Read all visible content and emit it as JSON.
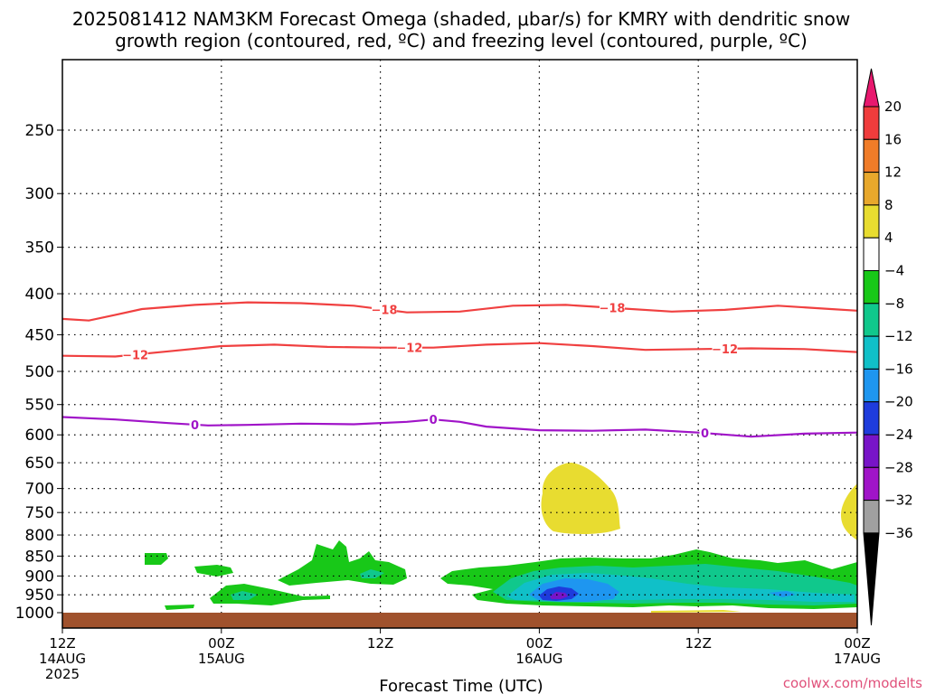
{
  "chart_data": {
    "type": "heatmap",
    "title_line1": "2025081412 NAM3KM Forecast Omega (shaded, μbar/s) for KMRY with dendritic snow",
    "title_line2": "growth region (contoured, red, ºC) and freezing level (contoured, purple, ºC)",
    "xlabel": "Forecast Time (UTC)",
    "credit": "coolwx.com/modelts",
    "x_range_hours": [
      0,
      60
    ],
    "x_ticks": [
      {
        "hour": 0,
        "lines": [
          "12Z",
          "14AUG",
          "2025"
        ]
      },
      {
        "hour": 12,
        "lines": [
          "00Z",
          "15AUG"
        ]
      },
      {
        "hour": 24,
        "lines": [
          "12Z"
        ]
      },
      {
        "hour": 36,
        "lines": [
          "00Z",
          "16AUG"
        ]
      },
      {
        "hour": 48,
        "lines": [
          "12Z"
        ]
      },
      {
        "hour": 60,
        "lines": [
          "00Z",
          "17AUG"
        ]
      }
    ],
    "y_ticks_hpa": [
      250,
      300,
      350,
      400,
      450,
      500,
      550,
      600,
      650,
      700,
      750,
      800,
      850,
      900,
      950,
      1000
    ],
    "colorbar_labels": [
      "20",
      "16",
      "12",
      "8",
      "4",
      "−4",
      "−8",
      "−12",
      "−16",
      "−20",
      "−24",
      "−28",
      "−32",
      "−36"
    ],
    "colorbar_colors": [
      "#e8186e",
      "#f03c3c",
      "#f07c28",
      "#e8a82c",
      "#e8dc30",
      "#ffffff",
      "#18c818",
      "#10c88c",
      "#10c0c8",
      "#1e96f0",
      "#1e3cdc",
      "#7814c8",
      "#a014c8",
      "#a0a0a0",
      "#000000"
    ],
    "contours": [
      {
        "label": "−18",
        "color": "#f04040",
        "points": [
          [
            0,
            430
          ],
          [
            2,
            432
          ],
          [
            4,
            425
          ],
          [
            6,
            418
          ],
          [
            10,
            413
          ],
          [
            14,
            410
          ],
          [
            18,
            411
          ],
          [
            22,
            414
          ],
          [
            26,
            422
          ],
          [
            30,
            421
          ],
          [
            34,
            414
          ],
          [
            38,
            413
          ],
          [
            42,
            417
          ],
          [
            46,
            421
          ],
          [
            50,
            419
          ],
          [
            54,
            414
          ],
          [
            58,
            418
          ],
          [
            60,
            420
          ]
        ],
        "label_hours": [
          24.3,
          41.5
        ]
      },
      {
        "label": "−12",
        "color": "#f04040",
        "points": [
          [
            0,
            478
          ],
          [
            4,
            479
          ],
          [
            8,
            472
          ],
          [
            12,
            465
          ],
          [
            16,
            463
          ],
          [
            20,
            466
          ],
          [
            24,
            467
          ],
          [
            28,
            467
          ],
          [
            32,
            463
          ],
          [
            36,
            461
          ],
          [
            40,
            465
          ],
          [
            44,
            470
          ],
          [
            48,
            469
          ],
          [
            52,
            468
          ],
          [
            56,
            469
          ],
          [
            60,
            473
          ]
        ],
        "label_hours": [
          5.5,
          26.2,
          50.0
        ]
      },
      {
        "label": "0",
        "color": "#a014c8",
        "points": [
          [
            0,
            570
          ],
          [
            4,
            574
          ],
          [
            8,
            580
          ],
          [
            11,
            584
          ],
          [
            14,
            583
          ],
          [
            18,
            581
          ],
          [
            22,
            582
          ],
          [
            26,
            578
          ],
          [
            28,
            574
          ],
          [
            30,
            578
          ],
          [
            32,
            586
          ],
          [
            36,
            592
          ],
          [
            40,
            593
          ],
          [
            44,
            591
          ],
          [
            48,
            596
          ],
          [
            52,
            603
          ],
          [
            56,
            598
          ],
          [
            60,
            596
          ]
        ],
        "label_hours": [
          10.0,
          28.0,
          48.5
        ]
      }
    ],
    "ground_color": "#a0522d"
  }
}
